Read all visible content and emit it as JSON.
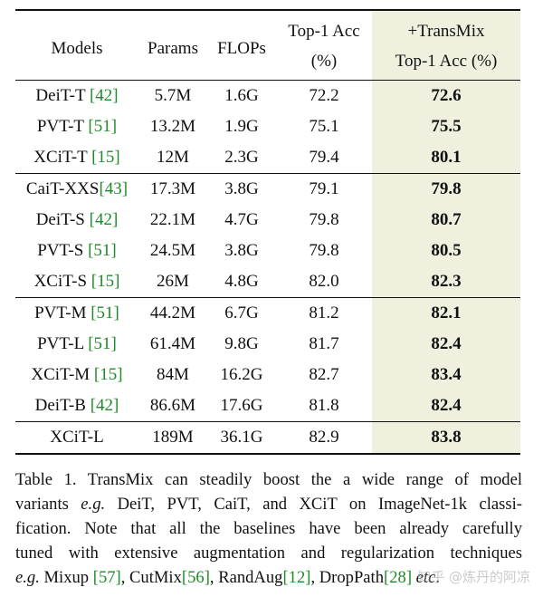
{
  "table": {
    "headers": {
      "model": "Models",
      "params": "Params",
      "flops": "FLOPs",
      "acc_line1": "Top-1 Acc",
      "acc_line2": "(%)",
      "mix_line1": "+TransMix",
      "mix_line2": "Top-1 Acc (%)"
    },
    "groups": [
      [
        {
          "name": "DeiT-T ",
          "ref": "[42]",
          "params": "5.7M",
          "flops": "1.6G",
          "acc": "72.2",
          "mix": "72.6"
        },
        {
          "name": "PVT-T ",
          "ref": "[51]",
          "params": "13.2M",
          "flops": "1.9G",
          "acc": "75.1",
          "mix": "75.5"
        },
        {
          "name": "XCiT-T ",
          "ref": "[15]",
          "params": "12M",
          "flops": "2.3G",
          "acc": "79.4",
          "mix": "80.1"
        }
      ],
      [
        {
          "name": "CaiT-XXS",
          "ref": "[43]",
          "params": "17.3M",
          "flops": "3.8G",
          "acc": "79.1",
          "mix": "79.8"
        },
        {
          "name": "DeiT-S ",
          "ref": "[42]",
          "params": "22.1M",
          "flops": "4.7G",
          "acc": "79.8",
          "mix": "80.7"
        },
        {
          "name": "PVT-S ",
          "ref": "[51]",
          "params": "24.5M",
          "flops": "3.8G",
          "acc": "79.8",
          "mix": "80.5"
        },
        {
          "name": "XCiT-S ",
          "ref": "[15]",
          "params": "26M",
          "flops": "4.8G",
          "acc": "82.0",
          "mix": "82.3"
        }
      ],
      [
        {
          "name": "PVT-M ",
          "ref": "[51]",
          "params": "44.2M",
          "flops": "6.7G",
          "acc": "81.2",
          "mix": "82.1"
        },
        {
          "name": "PVT-L ",
          "ref": "[51]",
          "params": "61.4M",
          "flops": "9.8G",
          "acc": "81.7",
          "mix": "82.4"
        },
        {
          "name": "XCiT-M ",
          "ref": "[15]",
          "params": "84M",
          "flops": "16.2G",
          "acc": "82.7",
          "mix": "83.4"
        },
        {
          "name": "DeiT-B ",
          "ref": "[42]",
          "params": "86.6M",
          "flops": "17.6G",
          "acc": "81.8",
          "mix": "82.4"
        }
      ],
      [
        {
          "name": "XCiT-L",
          "ref": "",
          "params": "189M",
          "flops": "36.1G",
          "acc": "82.9",
          "mix": "83.8"
        }
      ]
    ]
  },
  "caption": {
    "lines": [
      [
        {
          "t": "Table 1. TransMix can steadily boost the a wide range of model"
        }
      ],
      [
        {
          "t": "variants "
        },
        {
          "t": "e.g.",
          "i": true
        },
        {
          "t": " DeiT, PVT, CaiT, and XCiT on ImageNet-1k classi-"
        }
      ],
      [
        {
          "t": "fication.  Note that all the baselines have been already carefully"
        }
      ],
      [
        {
          "t": "tuned with extensive augmentation and regularization techniques"
        }
      ],
      [
        {
          "t": "e.g.",
          "i": true
        },
        {
          "t": " Mixup "
        },
        {
          "t": "[57]",
          "r": true
        },
        {
          "t": ", CutMix"
        },
        {
          "t": "[56]",
          "r": true
        },
        {
          "t": ", RandAug"
        },
        {
          "t": "[12]",
          "r": true
        },
        {
          "t": ", DropPath"
        },
        {
          "t": "[28]",
          "r": true
        },
        {
          "t": " "
        },
        {
          "t": "etc",
          "i": true
        },
        {
          "t": "."
        }
      ]
    ]
  },
  "watermark": "知乎 @炼丹的阿凉"
}
